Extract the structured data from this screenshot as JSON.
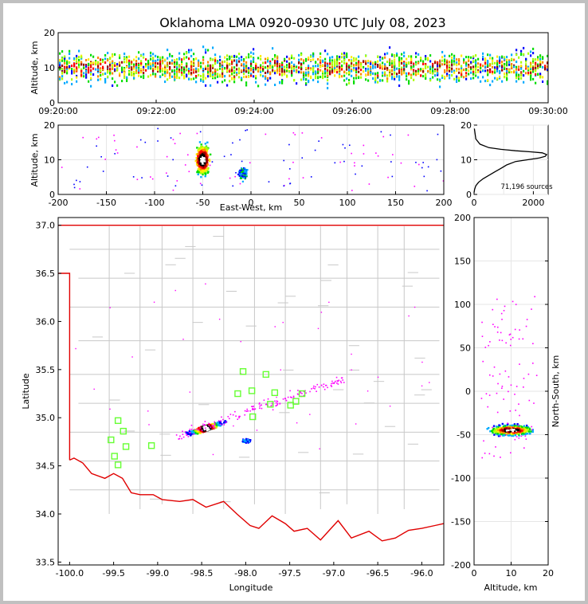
{
  "chart_data": [
    {
      "id": "time_height",
      "type": "scatter",
      "title": "Oklahoma LMA 0920-0930 UTC July 08, 2023",
      "ylabel": "Altitude, km",
      "xticks": [
        "09:20:00",
        "09:22:00",
        "09:24:00",
        "09:26:00",
        "09:28:00",
        "09:30:00"
      ],
      "xlim": [
        "09:20:00",
        "09:30:00"
      ],
      "ylim": [
        0,
        20
      ],
      "yticks": [
        0,
        10,
        20
      ],
      "description_values": {
        "typical_altitude_range_km": [
          3,
          15
        ],
        "core_altitude_km": 10
      }
    },
    {
      "id": "ew_altitude",
      "type": "scatter",
      "xlabel": "East-West, km",
      "ylabel": "Altitude, km",
      "xlim": [
        -200,
        200
      ],
      "ylim": [
        0,
        20
      ],
      "xticks": [
        -200,
        -150,
        -100,
        -50,
        0,
        50,
        100,
        150,
        200
      ],
      "yticks": [
        0,
        10,
        20
      ],
      "main_cluster": {
        "x_center_km": -50,
        "alt_center_km": 10
      },
      "secondary_cluster": {
        "x_center_km": -8,
        "alt_center_km": 6
      }
    },
    {
      "id": "altitude_histogram",
      "type": "line",
      "xlim": [
        0,
        2500
      ],
      "ylim": [
        0,
        20
      ],
      "xticks": [
        0,
        2000
      ],
      "yticks": [
        0,
        10,
        20
      ],
      "annotation": "71,196 sources",
      "x": [
        0,
        20,
        60,
        150,
        300,
        500,
        700,
        900,
        1100,
        1400,
        1800,
        2200,
        2400,
        2450,
        2300,
        1900,
        1400,
        900,
        500,
        200,
        60,
        10
      ],
      "y": [
        0.5,
        1.5,
        2.5,
        3.5,
        4.5,
        5.5,
        6.5,
        7.5,
        8.5,
        9.5,
        10.0,
        10.5,
        11.0,
        11.5,
        12.0,
        12.3,
        12.6,
        13.0,
        13.5,
        14.5,
        16.0,
        19.0
      ]
    },
    {
      "id": "plan_view",
      "type": "scatter",
      "xlabel": "Longitude",
      "ylabel": "Latitude",
      "xlim": [
        -100.13,
        -95.75
      ],
      "ylim": [
        33.47,
        37.08
      ],
      "xticks": [
        -100.0,
        -99.5,
        -99.0,
        -98.5,
        -98.0,
        -97.5,
        -97.0,
        -96.5,
        -96.0
      ],
      "yticks": [
        33.5,
        34.0,
        34.5,
        35.0,
        35.5,
        36.0,
        36.5,
        37.0
      ],
      "stations": [
        {
          "lon": -99.45,
          "lat": 34.97
        },
        {
          "lon": -99.39,
          "lat": 34.86
        },
        {
          "lon": -99.53,
          "lat": 34.77
        },
        {
          "lon": -99.36,
          "lat": 34.7
        },
        {
          "lon": -99.49,
          "lat": 34.6
        },
        {
          "lon": -99.45,
          "lat": 34.51
        },
        {
          "lon": -99.07,
          "lat": 34.71
        },
        {
          "lon": -98.09,
          "lat": 35.25
        },
        {
          "lon": -98.03,
          "lat": 35.48
        },
        {
          "lon": -97.93,
          "lat": 35.28
        },
        {
          "lon": -97.92,
          "lat": 35.01
        },
        {
          "lon": -97.77,
          "lat": 35.45
        },
        {
          "lon": -97.72,
          "lat": 35.14
        },
        {
          "lon": -97.67,
          "lat": 35.26
        },
        {
          "lon": -97.49,
          "lat": 35.13
        },
        {
          "lon": -97.43,
          "lat": 35.17
        },
        {
          "lon": -97.36,
          "lat": 35.25
        }
      ],
      "main_cluster": {
        "lon": -98.45,
        "lat": 34.89
      },
      "secondary_cluster": {
        "lon": -98.0,
        "lat": 34.76
      }
    },
    {
      "id": "ns_altitude",
      "type": "scatter",
      "xlabel": "Altitude, km",
      "ylabel": "North-South, km",
      "xlim": [
        0,
        20
      ],
      "ylim": [
        -200,
        200
      ],
      "xticks": [
        0,
        10,
        20
      ],
      "yticks": [
        -200,
        -150,
        -100,
        -50,
        0,
        50,
        100,
        150,
        200
      ],
      "main_cluster": {
        "alt_center_km": 10,
        "ns_center_km": -45
      }
    }
  ],
  "colors": {
    "frame": "#c0c0c0",
    "state_border": "#e00000",
    "county": "#c8c8c8",
    "station": "#66ff33",
    "sparse": "#ff00ff"
  }
}
